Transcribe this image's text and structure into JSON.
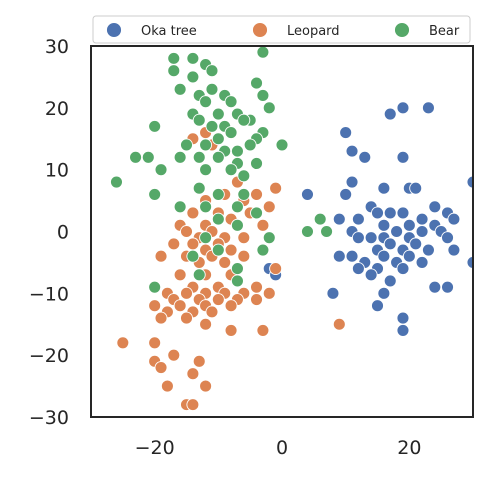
{
  "chart_data": {
    "type": "scatter",
    "title": "",
    "xlabel": "",
    "ylabel": "",
    "xlim": [
      -30,
      30
    ],
    "ylim": [
      -30,
      30
    ],
    "xticks": [
      -20,
      0,
      20
    ],
    "xtick_labels": [
      "−20",
      "0",
      "20"
    ],
    "yticks": [
      -30,
      -20,
      -10,
      0,
      10,
      20,
      30
    ],
    "ytick_labels": [
      "−30",
      "−20",
      "−10",
      "0",
      "10",
      "20",
      "30"
    ],
    "grid": false,
    "legend_position": "top",
    "series": [
      {
        "name": "Oka tree",
        "color": "#4c72b0",
        "points": [
          [
            23,
            20
          ],
          [
            19,
            20
          ],
          [
            17,
            19
          ],
          [
            10,
            16
          ],
          [
            11,
            13
          ],
          [
            13,
            12
          ],
          [
            19,
            12
          ],
          [
            30,
            8
          ],
          [
            4,
            6
          ],
          [
            -2,
            -6
          ],
          [
            -1,
            -7
          ],
          [
            11,
            8
          ],
          [
            16,
            7
          ],
          [
            20,
            7
          ],
          [
            21,
            7
          ],
          [
            10,
            6
          ],
          [
            24,
            4
          ],
          [
            14,
            4
          ],
          [
            15,
            3
          ],
          [
            17,
            3
          ],
          [
            19,
            3
          ],
          [
            26,
            3
          ],
          [
            12,
            2
          ],
          [
            9,
            2
          ],
          [
            22,
            2
          ],
          [
            27,
            2
          ],
          [
            16,
            1
          ],
          [
            20,
            1
          ],
          [
            24,
            1
          ],
          [
            11,
            0
          ],
          [
            18,
            0
          ],
          [
            22,
            0
          ],
          [
            25,
            0
          ],
          [
            12,
            -1
          ],
          [
            14,
            -1
          ],
          [
            16,
            -1
          ],
          [
            20,
            -1
          ],
          [
            26,
            -1
          ],
          [
            17,
            -2
          ],
          [
            21,
            -2
          ],
          [
            15,
            -3
          ],
          [
            19,
            -3
          ],
          [
            23,
            -3
          ],
          [
            27,
            -3
          ],
          [
            9,
            -4
          ],
          [
            11,
            -4
          ],
          [
            16,
            -4
          ],
          [
            20,
            -4
          ],
          [
            13,
            -5
          ],
          [
            18,
            -5
          ],
          [
            22,
            -5
          ],
          [
            30,
            -5
          ],
          [
            12,
            -6
          ],
          [
            15,
            -6
          ],
          [
            19,
            -6
          ],
          [
            14,
            -7
          ],
          [
            17,
            -8
          ],
          [
            24,
            -9
          ],
          [
            26,
            -9
          ],
          [
            8,
            -10
          ],
          [
            16,
            -10
          ],
          [
            15,
            -12
          ],
          [
            19,
            -14
          ],
          [
            19,
            -16
          ]
        ]
      },
      {
        "name": "Leopard",
        "color": "#dd8452",
        "points": [
          [
            -12,
            16
          ],
          [
            -14,
            15
          ],
          [
            -11,
            14
          ],
          [
            -7,
            8
          ],
          [
            -1,
            7
          ],
          [
            -9,
            6
          ],
          [
            -4,
            6
          ],
          [
            -12,
            5
          ],
          [
            -6,
            5
          ],
          [
            -2,
            4
          ],
          [
            -14,
            3
          ],
          [
            -10,
            3
          ],
          [
            -5,
            3
          ],
          [
            -8,
            2
          ],
          [
            -12,
            1
          ],
          [
            -16,
            1
          ],
          [
            -7,
            1
          ],
          [
            -3,
            1
          ],
          [
            -15,
            0
          ],
          [
            -11,
            0
          ],
          [
            -13,
            -1
          ],
          [
            -9,
            -1
          ],
          [
            -6,
            -1
          ],
          [
            -17,
            -2
          ],
          [
            -14,
            -2
          ],
          [
            -10,
            -2
          ],
          [
            -8,
            -3
          ],
          [
            -12,
            -3
          ],
          [
            -19,
            -4
          ],
          [
            -15,
            -4
          ],
          [
            -11,
            -4
          ],
          [
            -6,
            -4
          ],
          [
            -13,
            -5
          ],
          [
            -9,
            -5
          ],
          [
            -1,
            -6
          ],
          [
            -16,
            -7
          ],
          [
            -12,
            -7
          ],
          [
            -8,
            -7
          ],
          [
            -14,
            -9
          ],
          [
            -10,
            -9
          ],
          [
            -4,
            -9
          ],
          [
            -18,
            -10
          ],
          [
            -15,
            -10
          ],
          [
            -12,
            -10
          ],
          [
            -9,
            -10
          ],
          [
            -6,
            -10
          ],
          [
            -2,
            -10
          ],
          [
            -17,
            -11
          ],
          [
            -13,
            -11
          ],
          [
            -10,
            -11
          ],
          [
            -7,
            -11
          ],
          [
            -4,
            -11
          ],
          [
            -20,
            -12
          ],
          [
            -16,
            -12
          ],
          [
            -12,
            -12
          ],
          [
            -8,
            -12
          ],
          [
            -18,
            -13
          ],
          [
            -14,
            -13
          ],
          [
            -11,
            -13
          ],
          [
            -19,
            -14
          ],
          [
            -15,
            -14
          ],
          [
            -12,
            -15
          ],
          [
            -8,
            -16
          ],
          [
            -3,
            -16
          ],
          [
            9,
            -15
          ],
          [
            -25,
            -18
          ],
          [
            -20,
            -18
          ],
          [
            -17,
            -20
          ],
          [
            -20,
            -21
          ],
          [
            -13,
            -21
          ],
          [
            -19,
            -22
          ],
          [
            -14,
            -23
          ],
          [
            -18,
            -25
          ],
          [
            -12,
            -25
          ],
          [
            -15,
            -28
          ],
          [
            -14,
            -28
          ]
        ]
      },
      {
        "name": "Bear",
        "color": "#55a868",
        "points": [
          [
            -17,
            28
          ],
          [
            -14,
            28
          ],
          [
            -3,
            29
          ],
          [
            -12,
            27
          ],
          [
            -17,
            26
          ],
          [
            -11,
            26
          ],
          [
            -14,
            25
          ],
          [
            -4,
            24
          ],
          [
            -11,
            23
          ],
          [
            -16,
            23
          ],
          [
            -13,
            22
          ],
          [
            -9,
            22
          ],
          [
            -3,
            22
          ],
          [
            -12,
            21
          ],
          [
            -8,
            21
          ],
          [
            -2,
            20
          ],
          [
            -14,
            19
          ],
          [
            -10,
            19
          ],
          [
            -7,
            19
          ],
          [
            -5,
            18
          ],
          [
            -13,
            18
          ],
          [
            -6,
            18
          ],
          [
            -11,
            17
          ],
          [
            -9,
            17
          ],
          [
            -20,
            17
          ],
          [
            -3,
            16
          ],
          [
            -8,
            16
          ],
          [
            -10,
            15
          ],
          [
            -4,
            15
          ],
          [
            -15,
            14
          ],
          [
            -12,
            14
          ],
          [
            0,
            14
          ],
          [
            -5,
            14
          ],
          [
            -9,
            13
          ],
          [
            -7,
            13
          ],
          [
            -23,
            12
          ],
          [
            -21,
            12
          ],
          [
            -16,
            12
          ],
          [
            -13,
            12
          ],
          [
            -10,
            12
          ],
          [
            -7,
            11
          ],
          [
            -4,
            11
          ],
          [
            -8,
            10
          ],
          [
            -19,
            10
          ],
          [
            -12,
            10
          ],
          [
            -6,
            9
          ],
          [
            -26,
            8
          ],
          [
            -13,
            7
          ],
          [
            -20,
            6
          ],
          [
            -10,
            6
          ],
          [
            -6,
            6
          ],
          [
            -16,
            4
          ],
          [
            -12,
            4
          ],
          [
            -7,
            4
          ],
          [
            -4,
            3
          ],
          [
            -10,
            2
          ],
          [
            -7,
            1
          ],
          [
            -2,
            -1
          ],
          [
            -12,
            -1
          ],
          [
            -3,
            -3
          ],
          [
            -10,
            -3
          ],
          [
            -14,
            -4
          ],
          [
            -7,
            -6
          ],
          [
            -13,
            -7
          ],
          [
            -7,
            -8
          ],
          [
            -20,
            -9
          ],
          [
            6,
            2
          ],
          [
            4,
            0
          ],
          [
            7,
            0
          ]
        ]
      }
    ]
  }
}
